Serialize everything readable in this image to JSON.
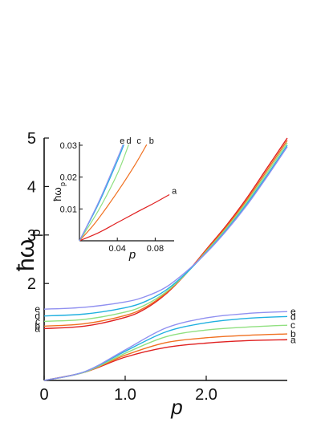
{
  "chart_data": [
    {
      "type": "line",
      "title": "",
      "xlabel": "p",
      "ylabel": "ħω",
      "ylabel_sub": "p",
      "xlim": [
        0,
        3.0
      ],
      "ylim": [
        0,
        5
      ],
      "xticks": [
        {
          "v": 0,
          "label": "0"
        },
        {
          "v": 1,
          "label": "1.0"
        },
        {
          "v": 2,
          "label": "2.0"
        }
      ],
      "yticks": [
        {
          "v": 2,
          "label": "2"
        },
        {
          "v": 3,
          "label": "3"
        },
        {
          "v": 4,
          "label": "4"
        },
        {
          "v": 5,
          "label": "5"
        }
      ],
      "grid": false,
      "legend": "none",
      "series": [
        {
          "name": "a",
          "color": "#e02020",
          "branch": "upper",
          "x": [
            0,
            0.5,
            1.0,
            1.25,
            1.5,
            1.75,
            2.0,
            2.25,
            2.5,
            2.75,
            3.0
          ],
          "y": [
            1.07,
            1.12,
            1.3,
            1.48,
            1.78,
            2.2,
            2.7,
            3.2,
            3.76,
            4.38,
            5.0
          ]
        },
        {
          "name": "b",
          "color": "#f07020",
          "branch": "upper",
          "x": [
            0,
            0.5,
            1.0,
            1.25,
            1.5,
            1.75,
            2.0,
            2.25,
            2.5,
            2.75,
            3.0
          ],
          "y": [
            1.12,
            1.17,
            1.34,
            1.51,
            1.8,
            2.2,
            2.68,
            3.17,
            3.72,
            4.33,
            4.95
          ]
        },
        {
          "name": "c",
          "color": "#90e080",
          "branch": "upper",
          "x": [
            0,
            0.5,
            1.0,
            1.25,
            1.5,
            1.75,
            2.0,
            2.25,
            2.5,
            2.75,
            3.0
          ],
          "y": [
            1.22,
            1.26,
            1.41,
            1.56,
            1.82,
            2.2,
            2.66,
            3.14,
            3.68,
            4.28,
            4.9
          ]
        },
        {
          "name": "d",
          "color": "#20b0e0",
          "branch": "upper",
          "x": [
            0,
            0.5,
            1.0,
            1.25,
            1.5,
            1.75,
            2.0,
            2.25,
            2.5,
            2.75,
            3.0
          ],
          "y": [
            1.33,
            1.37,
            1.5,
            1.63,
            1.86,
            2.21,
            2.64,
            3.11,
            3.64,
            4.23,
            4.85
          ]
        },
        {
          "name": "e",
          "color": "#9090f0",
          "branch": "upper",
          "x": [
            0,
            0.5,
            1.0,
            1.25,
            1.5,
            1.75,
            2.0,
            2.25,
            2.5,
            2.75,
            3.0
          ],
          "y": [
            1.47,
            1.51,
            1.62,
            1.73,
            1.92,
            2.24,
            2.63,
            3.09,
            3.61,
            4.2,
            4.82
          ]
        },
        {
          "name": "a",
          "color": "#e02020",
          "branch": "lower",
          "x": [
            0,
            0.5,
            1.0,
            1.5,
            2.0,
            2.5,
            3.0
          ],
          "y": [
            0,
            0.17,
            0.48,
            0.68,
            0.77,
            0.82,
            0.84
          ]
        },
        {
          "name": "b",
          "color": "#f07020",
          "branch": "lower",
          "x": [
            0,
            0.5,
            1.0,
            1.5,
            2.0,
            2.5,
            3.0
          ],
          "y": [
            0,
            0.17,
            0.52,
            0.78,
            0.88,
            0.93,
            0.96
          ]
        },
        {
          "name": "c",
          "color": "#90e080",
          "branch": "lower",
          "x": [
            0,
            0.5,
            1.0,
            1.5,
            2.0,
            2.5,
            3.0
          ],
          "y": [
            0,
            0.17,
            0.56,
            0.9,
            1.04,
            1.1,
            1.14
          ]
        },
        {
          "name": "d",
          "color": "#20b0e0",
          "branch": "lower",
          "x": [
            0,
            0.5,
            1.0,
            1.5,
            2.0,
            2.5,
            3.0
          ],
          "y": [
            0,
            0.18,
            0.6,
            1.0,
            1.19,
            1.28,
            1.32
          ]
        },
        {
          "name": "e",
          "color": "#9090f0",
          "branch": "lower",
          "x": [
            0,
            0.5,
            1.0,
            1.5,
            2.0,
            2.5,
            3.0
          ],
          "y": [
            0,
            0.18,
            0.63,
            1.08,
            1.29,
            1.38,
            1.42
          ]
        }
      ]
    },
    {
      "type": "line",
      "title": "",
      "xlabel": "p",
      "ylabel": "ħω",
      "ylabel_sub": "p",
      "xlim": [
        0,
        0.1
      ],
      "ylim": [
        0,
        0.031
      ],
      "xticks": [
        {
          "v": 0.04,
          "label": "0.04"
        },
        {
          "v": 0.08,
          "label": "0.08"
        }
      ],
      "yticks": [
        {
          "v": 0.01,
          "label": "0.01"
        },
        {
          "v": 0.02,
          "label": "0.02"
        },
        {
          "v": 0.03,
          "label": "0.03"
        }
      ],
      "grid": false,
      "legend": "none",
      "series": [
        {
          "name": "a",
          "color": "#e02020",
          "x": [
            0,
            0.02,
            0.04,
            0.06,
            0.08,
            0.095
          ],
          "y": [
            0,
            0.0025,
            0.0057,
            0.0089,
            0.012,
            0.0145
          ]
        },
        {
          "name": "b",
          "color": "#f07020",
          "x": [
            0,
            0.015,
            0.03,
            0.045,
            0.06,
            0.071
          ],
          "y": [
            0,
            0.005,
            0.011,
            0.0175,
            0.0245,
            0.0302
          ]
        },
        {
          "name": "c",
          "color": "#90e080",
          "x": [
            0,
            0.02,
            0.04,
            0.052
          ],
          "y": [
            0,
            0.0095,
            0.021,
            0.0302
          ]
        },
        {
          "name": "d",
          "color": "#20b0e0",
          "x": [
            0,
            0.02,
            0.04,
            0.047
          ],
          "y": [
            0,
            0.0115,
            0.025,
            0.0302
          ]
        },
        {
          "name": "e",
          "color": "#9090f0",
          "x": [
            0,
            0.02,
            0.04,
            0.046
          ],
          "y": [
            0,
            0.012,
            0.0258,
            0.0302
          ]
        }
      ]
    }
  ]
}
